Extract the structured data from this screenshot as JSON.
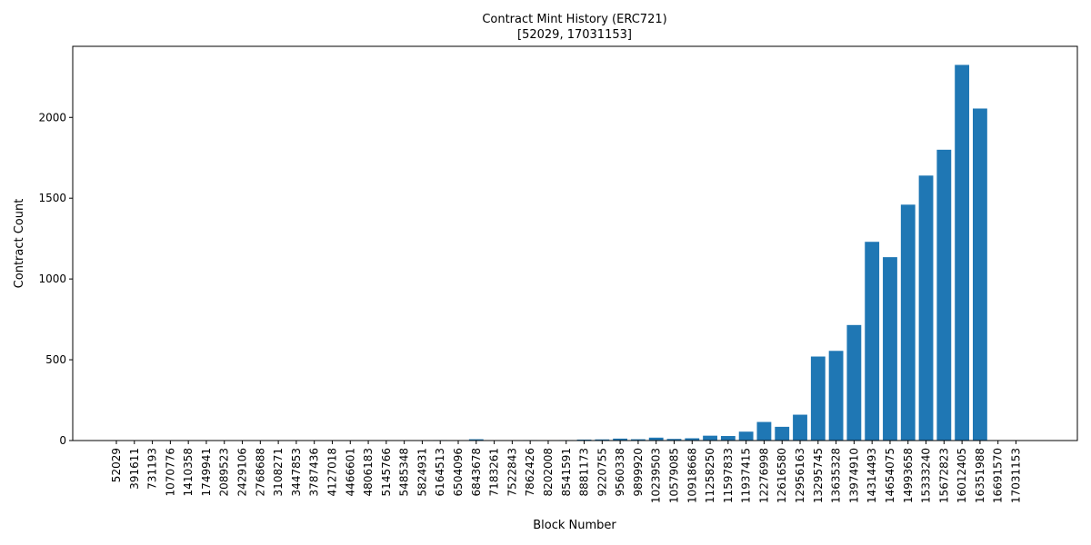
{
  "chart_data": {
    "type": "bar",
    "title": "Contract Mint History (ERC721)",
    "subtitle": "[52029, 17031153]",
    "xlabel": "Block Number",
    "ylabel": "Contract Count",
    "ylim": [
      0,
      2440
    ],
    "yticks": [
      0,
      500,
      1000,
      1500,
      2000
    ],
    "grid": false,
    "bar_color": "#1f77b4",
    "categories": [
      "52029",
      "391611",
      "731193",
      "1070776",
      "1410358",
      "1749941",
      "2089523",
      "2429106",
      "2768688",
      "3108271",
      "3447853",
      "3787436",
      "4127018",
      "4466601",
      "4806183",
      "5145766",
      "5485348",
      "5824931",
      "6164513",
      "6504096",
      "6843678",
      "7183261",
      "7522843",
      "7862426",
      "8202008",
      "8541591",
      "8881173",
      "9220755",
      "9560338",
      "9899920",
      "10239503",
      "10579085",
      "10918668",
      "11258250",
      "11597833",
      "11937415",
      "12276998",
      "12616580",
      "12956163",
      "13295745",
      "13635328",
      "13974910",
      "14314493",
      "14654075",
      "14993658",
      "15333240",
      "15672823",
      "16012405",
      "16351988",
      "16691570",
      "17031153"
    ],
    "values": [
      0,
      0,
      0,
      0,
      0,
      0,
      0,
      0,
      0,
      0,
      0,
      0,
      0,
      0,
      0,
      0,
      0,
      2,
      3,
      2,
      8,
      1,
      2,
      3,
      2,
      3,
      6,
      7,
      12,
      8,
      18,
      10,
      14,
      30,
      28,
      55,
      115,
      85,
      160,
      520,
      555,
      715,
      1230,
      1135,
      1460,
      1640,
      1800,
      2325,
      2055,
      0,
      0
    ]
  }
}
